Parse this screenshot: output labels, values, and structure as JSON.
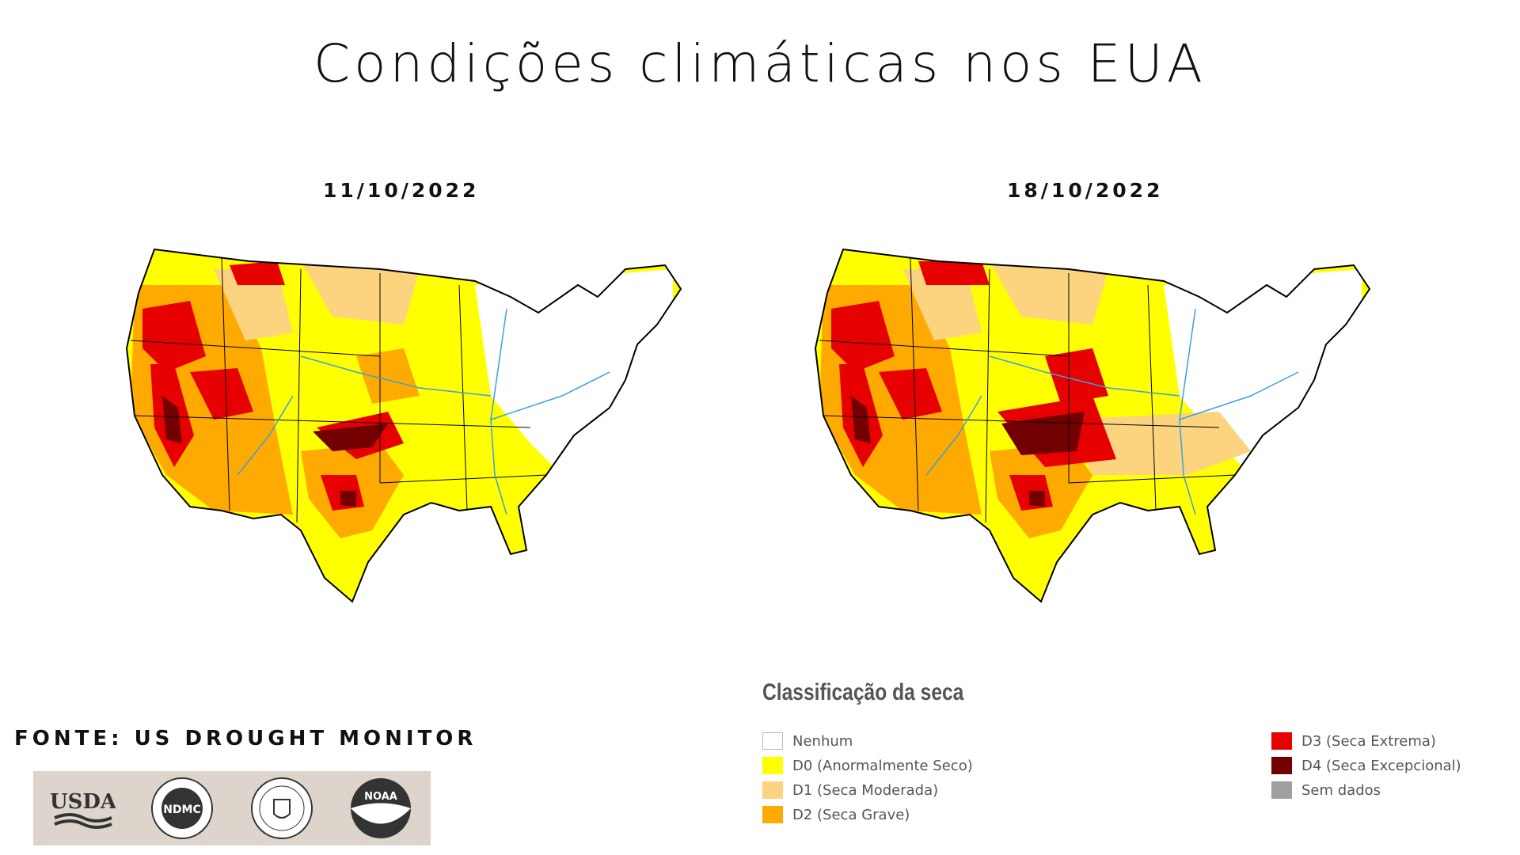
{
  "title": "Condições climáticas nos EUA",
  "maps": [
    {
      "date": "11/10/2022"
    },
    {
      "date": "18/10/2022"
    }
  ],
  "source": "FONTE: US DROUGHT MONITOR",
  "logos": [
    {
      "name": "usda-logo",
      "text": "USDA"
    },
    {
      "name": "ndmc-logo",
      "text": "NDMC"
    },
    {
      "name": "doc-seal-logo",
      "text": "DEPARTMENT OF COMMERCE"
    },
    {
      "name": "noaa-logo",
      "text": "NOAA"
    }
  ],
  "legend": {
    "title": "Classificação da seca",
    "items": [
      {
        "label": "Nenhum",
        "color": "#ffffff"
      },
      {
        "label": "D0 (Anormalmente Seco)",
        "color": "#ffff00"
      },
      {
        "label": "D1 (Seca Moderada)",
        "color": "#fcd37f"
      },
      {
        "label": "D2 (Seca Grave)",
        "color": "#ffaa00"
      },
      {
        "label": "D3 (Seca Extrema)",
        "color": "#e60000"
      },
      {
        "label": "D4 (Seca Excepcional)",
        "color": "#730000"
      },
      {
        "label": "Sem dados",
        "color": "#a0a0a0"
      }
    ]
  }
}
